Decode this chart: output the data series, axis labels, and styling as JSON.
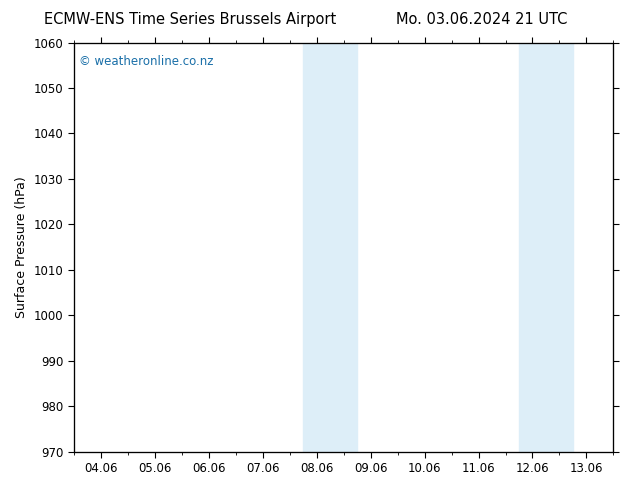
{
  "title_left": "ECMW-ENS Time Series Brussels Airport",
  "title_right": "Mo. 03.06.2024 21 UTC",
  "ylabel": "Surface Pressure (hPa)",
  "xlabel": "",
  "watermark": "© weatheronline.co.nz",
  "ylim": [
    970,
    1060
  ],
  "yticks": [
    970,
    980,
    990,
    1000,
    1010,
    1020,
    1030,
    1040,
    1050,
    1060
  ],
  "xtick_labels": [
    "04.06",
    "05.06",
    "06.06",
    "07.06",
    "08.06",
    "09.06",
    "10.06",
    "11.06",
    "12.06",
    "13.06"
  ],
  "xtick_positions": [
    0,
    1,
    2,
    3,
    4,
    5,
    6,
    7,
    8,
    9
  ],
  "xlim": [
    -0.5,
    9.5
  ],
  "shaded_regions": [
    {
      "xmin": 3.75,
      "xmax": 4.75,
      "color": "#ddeef8"
    },
    {
      "xmin": 7.75,
      "xmax": 8.75,
      "color": "#ddeef8"
    }
  ],
  "background_color": "#ffffff",
  "plot_area_color": "#ffffff",
  "border_color": "#000000",
  "title_fontsize": 10.5,
  "axis_label_fontsize": 9,
  "tick_fontsize": 8.5,
  "watermark_color": "#1a6fa8",
  "watermark_fontsize": 8.5
}
